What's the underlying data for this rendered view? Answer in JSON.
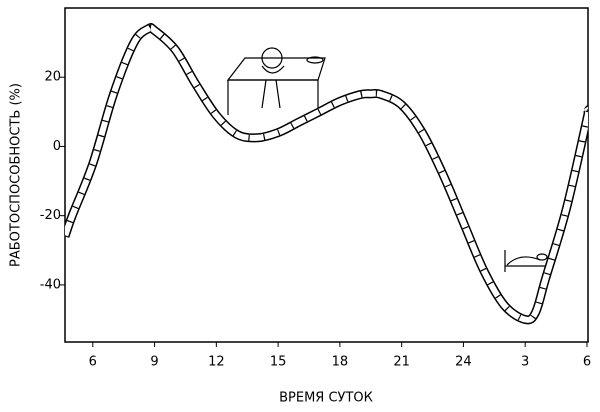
{
  "chart_data": {
    "type": "line",
    "x_label": "ВРЕМЯ СУТОК",
    "y_label": "РАБОТОСПОСОБНОСТЬ (%)",
    "x": [
      4.65,
      5,
      6,
      7,
      8,
      8.7,
      9,
      10,
      11,
      12,
      13,
      14,
      15,
      16,
      17,
      18,
      19,
      19.5,
      20,
      21,
      22,
      23,
      24,
      25,
      26,
      27,
      27.5,
      28,
      29,
      30,
      30.05
    ],
    "values": [
      -26,
      -20,
      -5,
      15,
      30,
      34,
      33.5,
      28,
      18,
      9,
      3.5,
      2.5,
      4,
      7,
      10,
      13,
      15,
      15.2,
      15,
      12,
      4,
      -8,
      -22,
      -36,
      -46,
      -50,
      -48,
      -38,
      -18,
      8,
      10
    ],
    "xlim": [
      4.65,
      30.05
    ],
    "ylim": [
      -56.5,
      40
    ],
    "xticks": [
      6,
      9,
      12,
      15,
      18,
      21,
      24,
      {
        "value": 27,
        "label": "3"
      },
      {
        "value": 30,
        "label": "6"
      }
    ],
    "yticks": [
      -40,
      -20,
      0,
      20
    ],
    "color": "#000000"
  }
}
